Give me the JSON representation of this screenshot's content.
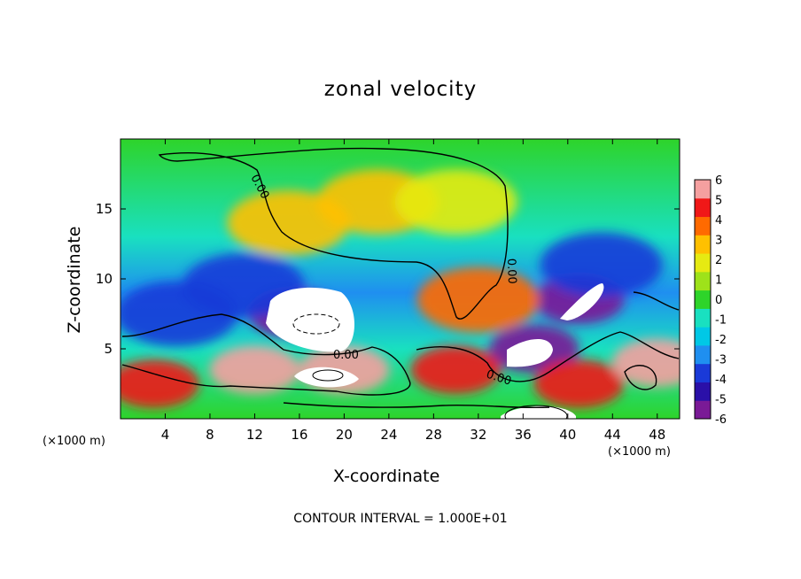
{
  "chart_data": {
    "type": "heatmap",
    "title": "zonal velocity",
    "xlabel": "X-coordinate",
    "ylabel": "Z-coordinate",
    "x_unit_left": "(×1000 m)",
    "x_unit_right": "(×1000 m)",
    "xlim": [
      0,
      50
    ],
    "ylim": [
      0,
      20
    ],
    "x_ticks": [
      4,
      8,
      12,
      16,
      20,
      24,
      28,
      32,
      36,
      40,
      44,
      48
    ],
    "y_ticks": [
      5,
      10,
      15
    ],
    "colorbar": {
      "ticks": [
        6,
        5,
        4,
        3,
        2,
        1,
        0,
        -1,
        -2,
        -3,
        -4,
        -5,
        -6
      ],
      "range": [
        -6,
        6
      ],
      "colors": [
        "#7a1a96",
        "#2a10a8",
        "#1a3ad8",
        "#1f8ff0",
        "#00c8e6",
        "#19e0c0",
        "#2ed42a",
        "#9ee21a",
        "#e6ea12",
        "#ffc000",
        "#ff6a00",
        "#f01818",
        "#f5a0a0"
      ]
    },
    "contour_labels": [
      "0.00",
      "0.00",
      "0.00",
      "0.00",
      "0.00"
    ],
    "annotation": "CONTOUR INTERVAL = 1.000E+01",
    "white_regions_note": "values exceed color range",
    "features": [
      {
        "kind": "max",
        "x": 23,
        "z": 15.5,
        "value": 2.5
      },
      {
        "kind": "max",
        "x": 15,
        "z": 14,
        "value": 3
      },
      {
        "kind": "min",
        "x": 15.5,
        "z": 7.5,
        "value": -6
      },
      {
        "kind": "min",
        "x": 37,
        "z": 5,
        "value": -6
      },
      {
        "kind": "min",
        "x": 41,
        "z": 8.5,
        "value": -6
      },
      {
        "kind": "min",
        "x": 11,
        "z": 9.5,
        "value": -4.5
      },
      {
        "kind": "min",
        "x": 43,
        "z": 11,
        "value": -4.5
      },
      {
        "kind": "max",
        "x": 32,
        "z": 8.5,
        "value": 4
      },
      {
        "kind": "max",
        "x": 12,
        "z": 3.5,
        "value": 6
      },
      {
        "kind": "max",
        "x": 20,
        "z": 3.5,
        "value": 6
      },
      {
        "kind": "max",
        "x": 3,
        "z": 2.5,
        "value": 5
      },
      {
        "kind": "max",
        "x": 30,
        "z": 3.5,
        "value": 5
      },
      {
        "kind": "max",
        "x": 41,
        "z": 2.5,
        "value": 5
      },
      {
        "kind": "max",
        "x": 48,
        "z": 4,
        "value": 6
      },
      {
        "kind": "min",
        "x": 5,
        "z": 7.5,
        "value": -4
      },
      {
        "kind": "min",
        "x": 30,
        "z": 15.5,
        "value": 2
      }
    ]
  }
}
